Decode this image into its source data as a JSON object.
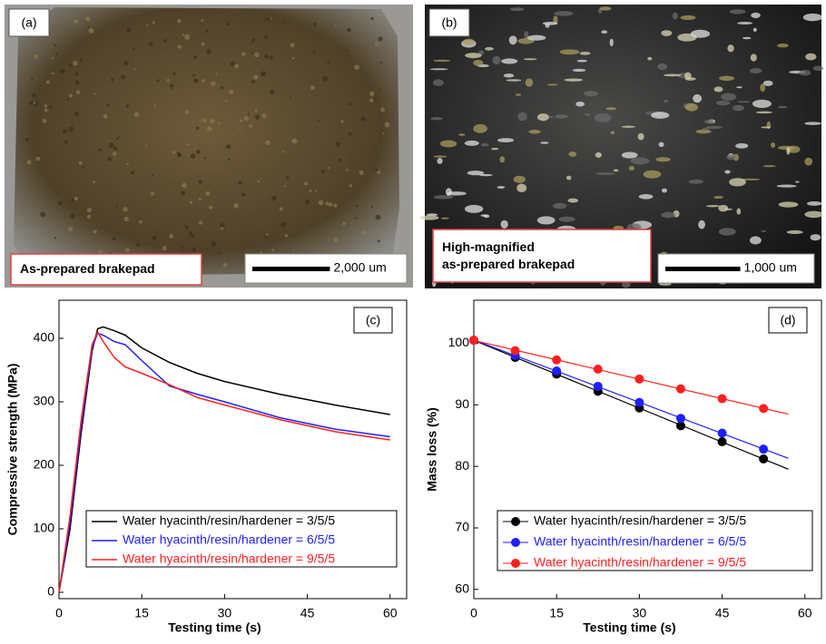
{
  "photos": [
    {
      "label": "(a)",
      "caption": "As-prepared brakepad",
      "scale": "2,000 um"
    },
    {
      "label": "(b)",
      "caption": "High-magnified\nas-prepared brakepad",
      "scale": "1,000 um"
    }
  ],
  "chart_data": [
    {
      "type": "line",
      "panel": "(c)",
      "xlabel": "Testing time (s)",
      "ylabel": "Compressive strength (MPa)",
      "x": [
        0,
        2,
        4,
        6,
        7,
        8,
        10,
        12,
        15,
        20,
        25,
        30,
        40,
        50,
        60
      ],
      "series": [
        {
          "name": "Water hyacinth/resin/hardener  = 3/5/5",
          "color": "#000000",
          "values": [
            0,
            100,
            250,
            380,
            415,
            418,
            412,
            405,
            385,
            362,
            345,
            332,
            312,
            295,
            280
          ]
        },
        {
          "name": "Water hyacinth/resin/hardener  = 6/5/5",
          "color": "#1f1fff",
          "values": [
            0,
            110,
            260,
            385,
            408,
            405,
            395,
            390,
            365,
            325,
            312,
            300,
            275,
            257,
            245
          ]
        },
        {
          "name": "Water hyacinth/resin/hardener  = 9/5/5",
          "color": "#ff1f1f",
          "values": [
            0,
            120,
            270,
            390,
            410,
            395,
            370,
            355,
            345,
            327,
            307,
            295,
            272,
            253,
            240
          ]
        }
      ],
      "xlim": [
        0,
        63
      ],
      "xticks": [
        0,
        15,
        30,
        45,
        60
      ],
      "ylim": [
        -10,
        460
      ],
      "yticks": [
        0,
        100,
        200,
        300,
        400
      ]
    },
    {
      "type": "scatter",
      "panel": "(d)",
      "xlabel": "Testing time (s)",
      "ylabel": "Mass loss (%)",
      "x": [
        0,
        7.5,
        15,
        22.5,
        30,
        37.5,
        45,
        52.5
      ],
      "trendline": true,
      "series": [
        {
          "name": "Water hyacinth/resin/hardener  = 3/5/5",
          "color": "#000000",
          "values": [
            100.5,
            97.7,
            95,
            92.2,
            89.5,
            86.6,
            84,
            81.2
          ]
        },
        {
          "name": "Water hyacinth/resin/hardener  = 6/5/5",
          "color": "#1f1fff",
          "values": [
            100.5,
            98,
            95.5,
            93,
            90.4,
            87.8,
            85.4,
            82.8
          ]
        },
        {
          "name": "Water hyacinth/resin/hardener  = 9/5/5",
          "color": "#ff1f1f",
          "values": [
            100.5,
            98.8,
            97.3,
            95.8,
            94.2,
            92.6,
            91,
            89.4
          ]
        }
      ],
      "xlim": [
        0,
        63
      ],
      "xticks": [
        0,
        15,
        30,
        45,
        60
      ],
      "ylim": [
        58.5,
        107
      ],
      "yticks": [
        60,
        70,
        80,
        90,
        100
      ]
    }
  ]
}
